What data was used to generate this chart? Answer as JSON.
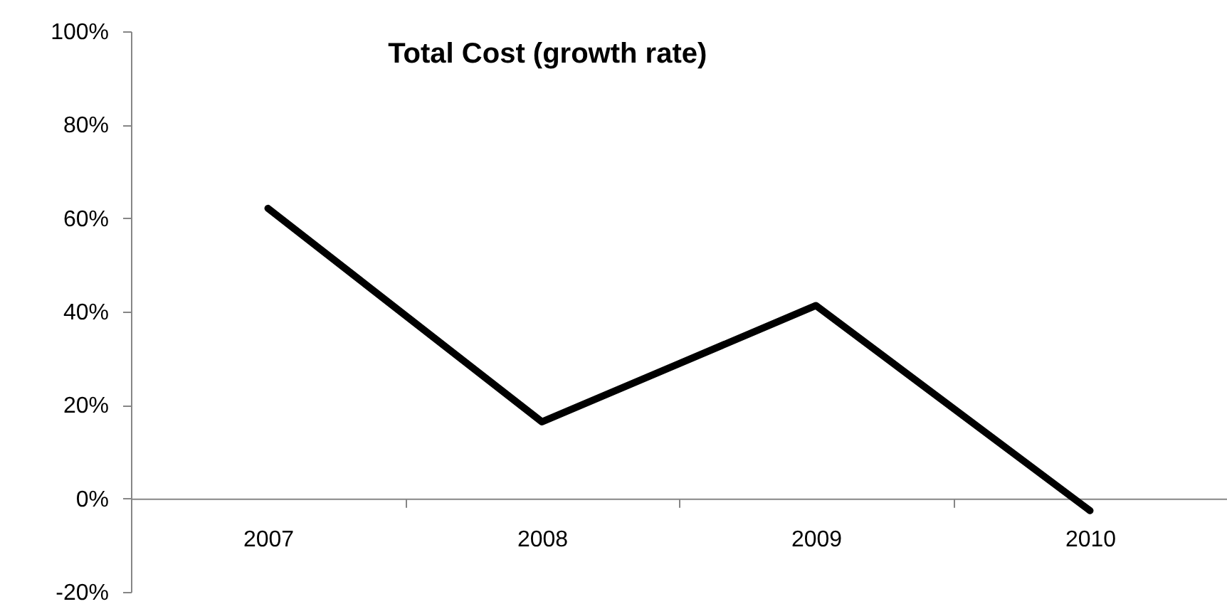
{
  "chart_data": {
    "type": "line",
    "title": "Total Cost (growth rate)",
    "categories": [
      "2007",
      "2008",
      "2009",
      "2010"
    ],
    "series": [
      {
        "color": "#000000",
        "values": [
          62.1,
          16.4,
          41.3,
          -2.6
        ]
      }
    ],
    "ylim": [
      -20,
      100
    ],
    "yticks": [
      {
        "value": -20,
        "label": "-20%"
      },
      {
        "value": 0,
        "label": "0%"
      },
      {
        "value": 20,
        "label": "20%"
      },
      {
        "value": 40,
        "label": "40%"
      },
      {
        "value": 60,
        "label": "60%"
      },
      {
        "value": 80,
        "label": "80%"
      },
      {
        "value": 100,
        "label": "100%"
      }
    ],
    "grid": false,
    "marker": "none",
    "line_style": "solid"
  }
}
